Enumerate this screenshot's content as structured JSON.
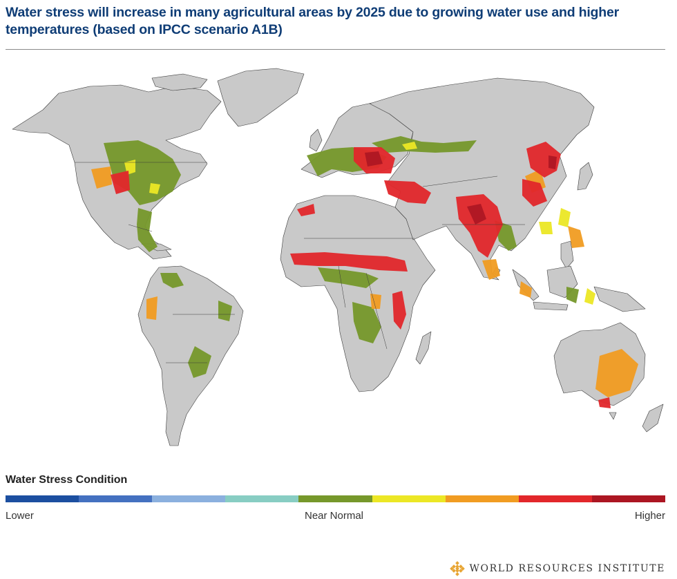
{
  "title": "Water stress will increase in many agricultural areas by 2025 due to growing water use and higher temperatures (based on IPCC scenario A1B)",
  "legend": {
    "title": "Water Stress Condition",
    "label_low": "Lower",
    "label_mid": "Near Normal",
    "label_high": "Higher",
    "colors": [
      "#1c4fa0",
      "#4471c0",
      "#8bb0de",
      "#88cdc3",
      "#76982b",
      "#ece725",
      "#f19c22",
      "#e2272b",
      "#ac1622"
    ]
  },
  "map": {
    "land_color": "#c9c9c9",
    "border_color": "#3a3a3a",
    "ocean_color": "#ffffff",
    "stress_colors": {
      "near_normal": "#76982b",
      "light": "#ece725",
      "moderate": "#f19c22",
      "high": "#e2272b",
      "very_high": "#ac1622"
    }
  },
  "brand": {
    "name": "WORLD RESOURCES INSTITUTE",
    "logo_icon": "wri-diamond-logo",
    "logo_color": "#e8a534"
  }
}
